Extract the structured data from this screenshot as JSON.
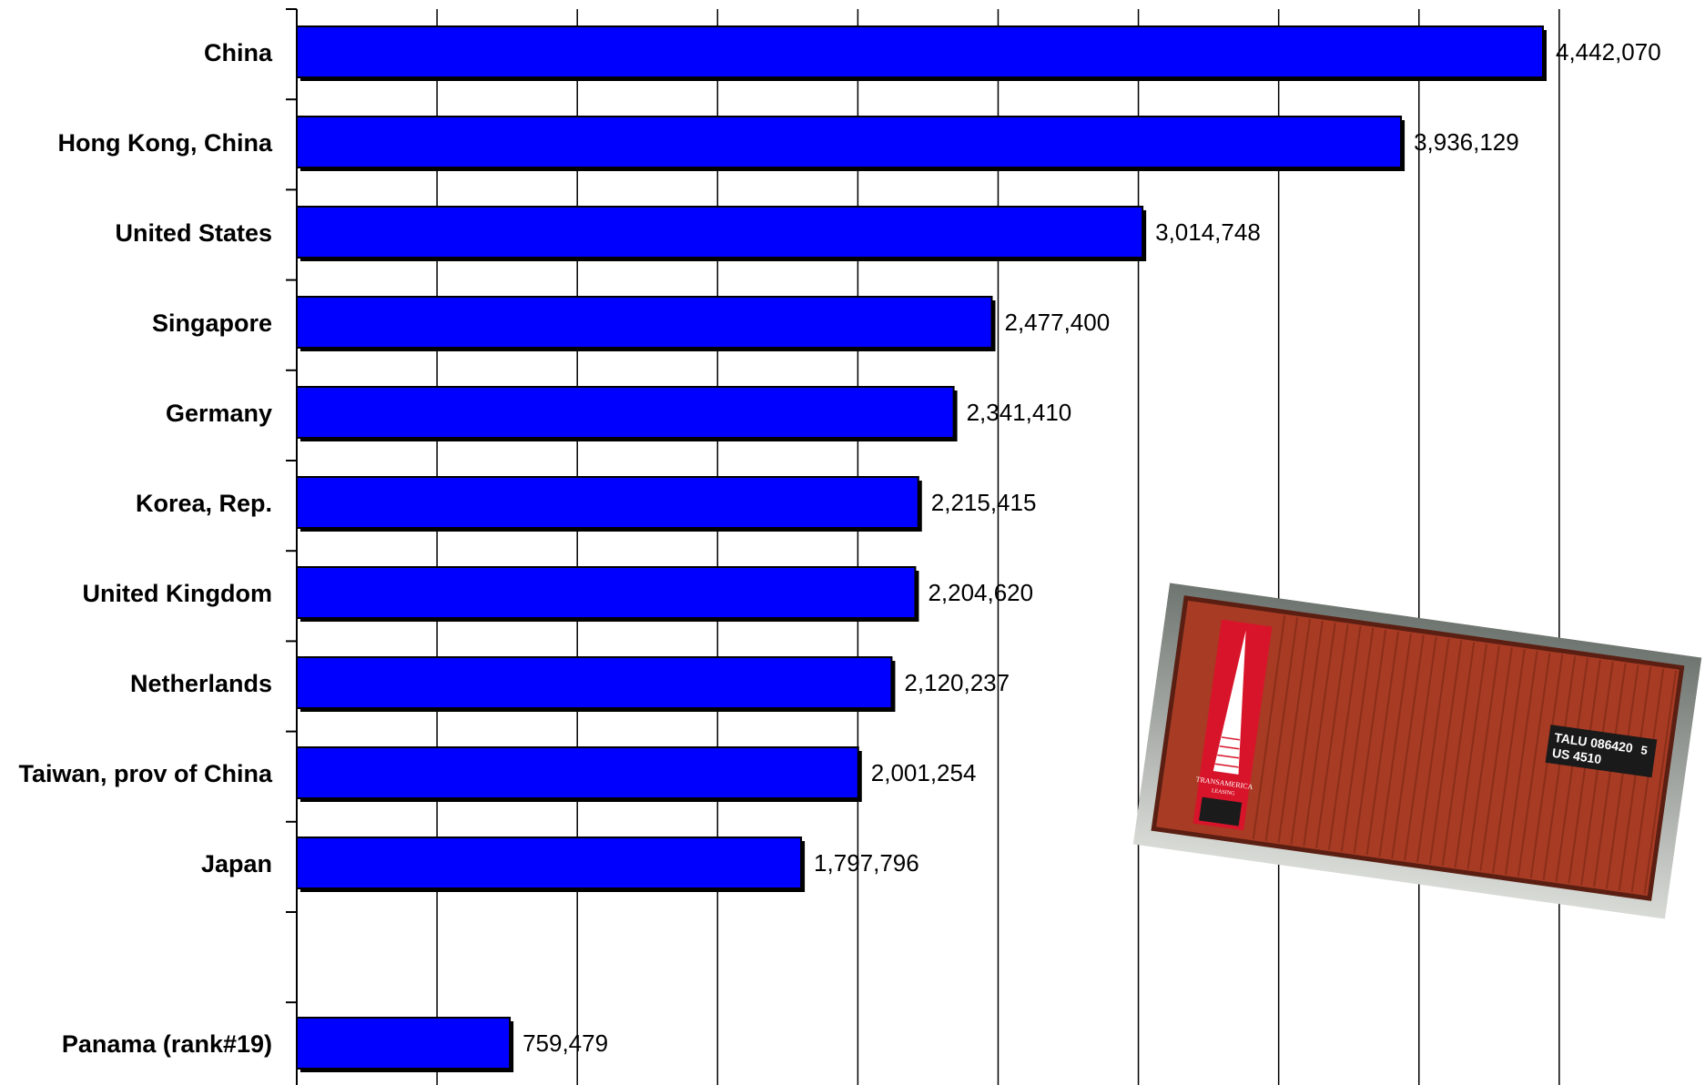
{
  "chart_data": {
    "type": "bar",
    "orientation": "horizontal",
    "categories": [
      "China",
      "Hong Kong, China",
      "United States",
      "Singapore",
      "Germany",
      "Korea, Rep.",
      "United Kingdom",
      "Netherlands",
      "Taiwan, prov of China",
      "Japan",
      "Panama (rank#19)"
    ],
    "values": [
      4442070,
      3936129,
      3014748,
      2477400,
      2341410,
      2215415,
      2204620,
      2120237,
      2001254,
      1797796,
      759479
    ],
    "value_labels": [
      "4,442,070",
      "3,936,129",
      "3,014,748",
      "2,477,400",
      "2,341,410",
      "2,215,415",
      "2,204,620",
      "2,120,237",
      "2,001,254",
      "1,797,796",
      "759,479"
    ],
    "title": "",
    "xlabel": "",
    "ylabel": "",
    "xlim": [
      0,
      4500000
    ],
    "grid": true,
    "bar_color": "#0000ff"
  },
  "photo": {
    "container_code": "TALU 086420",
    "check_digit": "5",
    "country_type": "US 4510",
    "brand": "TRANSAMERICA",
    "brand_sub": "LEASING",
    "container_color": "#a83b24"
  }
}
